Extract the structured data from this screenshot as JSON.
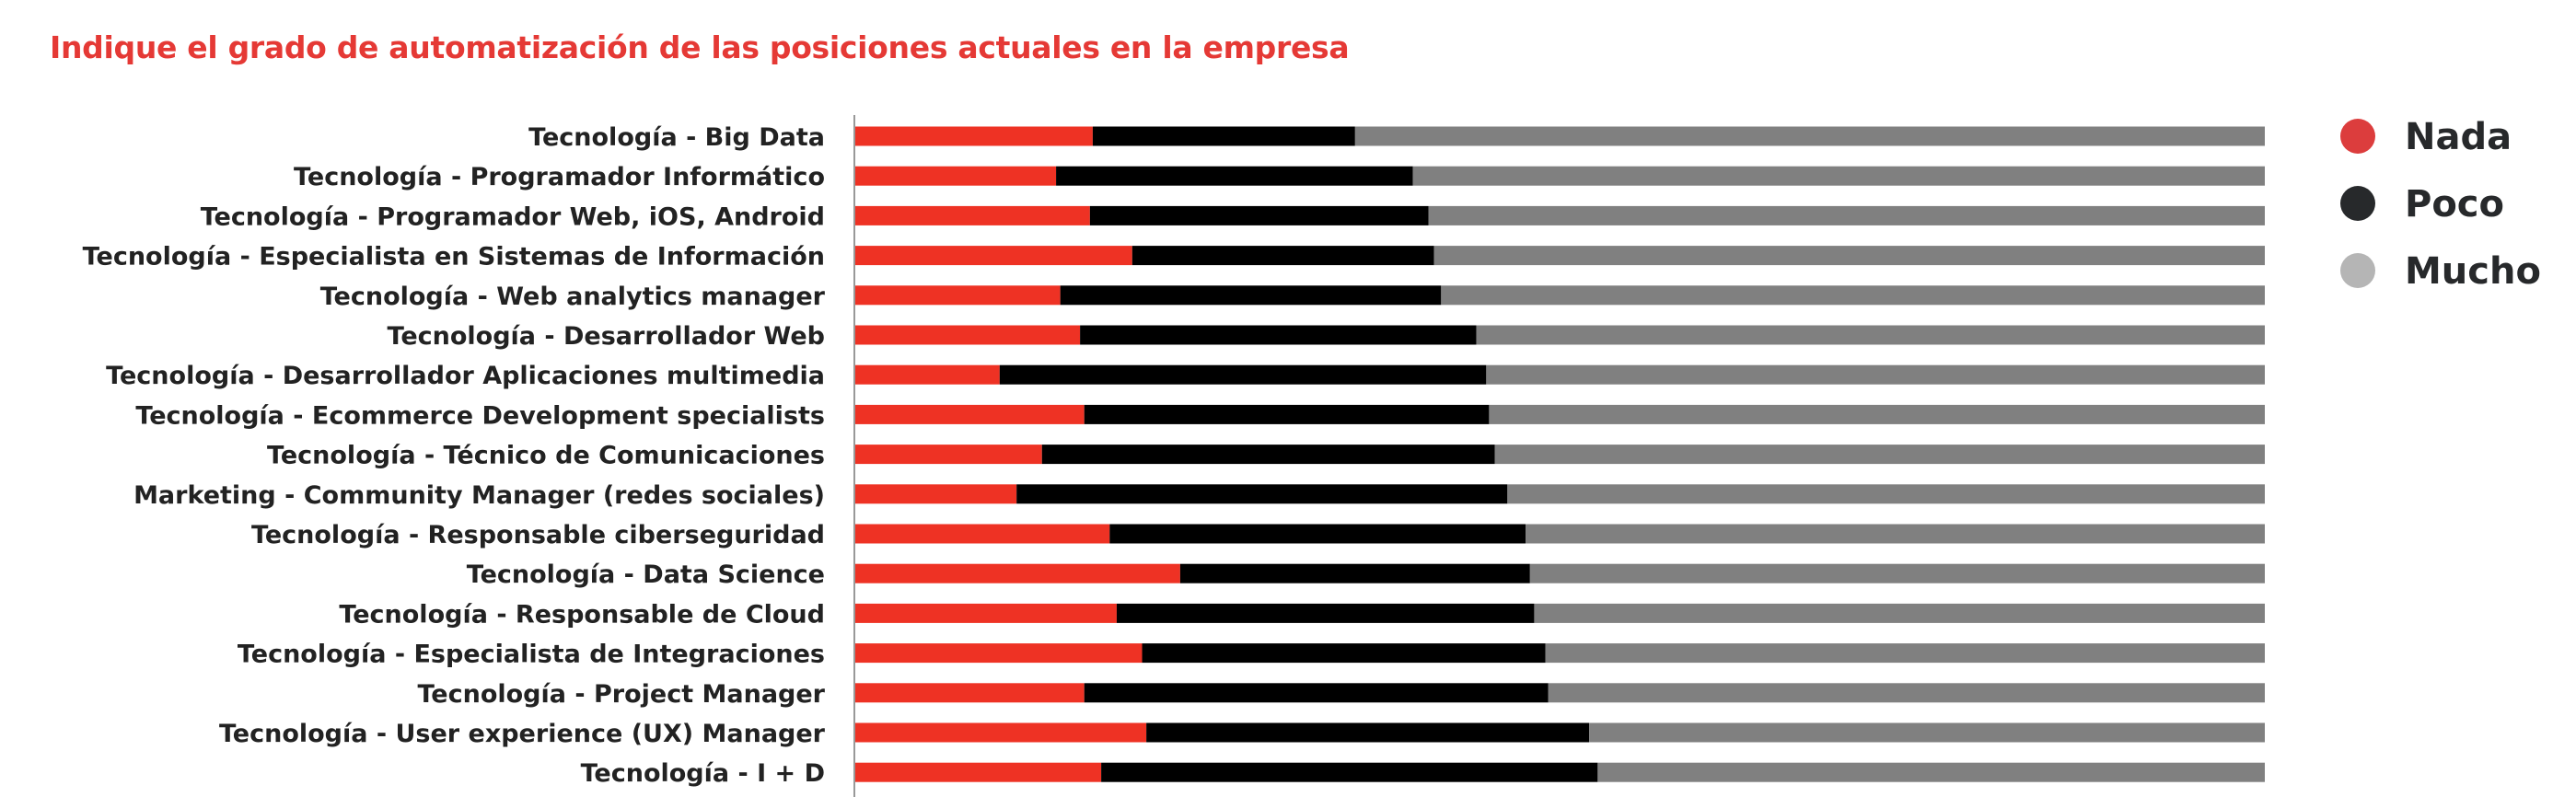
{
  "chart_data": {
    "type": "bar",
    "orientation": "horizontal",
    "stacked": true,
    "percent": true,
    "title": "Indique el grado de automatización de las posiciones actuales en la empresa",
    "xlabel": "",
    "ylabel": "",
    "xlim": [
      0,
      100
    ],
    "grid": false,
    "legend_position": "right",
    "categories": [
      "Tecnología - Big Data",
      "Tecnología - Programador Informático",
      "Tecnología - Programador Web, iOS, Android",
      "Tecnología - Especialista en Sistemas de Información",
      "Tecnología - Web analytics manager",
      "Tecnología - Desarrollador Web",
      "Tecnología - Desarrollador Aplicaciones multimedia",
      "Tecnología - Ecommerce Development specialists",
      "Tecnología - Técnico de Comunicaciones",
      "Marketing - Community Manager (redes sociales)",
      "Tecnología - Responsable ciberseguridad",
      "Tecnología - Data Science",
      "Tecnología - Responsable de Cloud",
      "Tecnología - Especialista de Integraciones",
      "Tecnología - Project Manager",
      "Tecnología - User experience (UX) Manager",
      "Tecnología - I + D"
    ],
    "series": [
      {
        "name": "Nada",
        "color": "#ee3224",
        "legend_color": "#dc3d3d",
        "values": [
          16.9,
          14.3,
          16.7,
          19.7,
          14.6,
          16.0,
          10.3,
          16.3,
          13.3,
          11.5,
          18.1,
          23.1,
          18.6,
          20.4,
          16.3,
          20.7,
          17.5
        ]
      },
      {
        "name": "Poco",
        "color": "#000000",
        "legend_color": "#27292b",
        "values": [
          18.6,
          25.3,
          24.0,
          21.4,
          27.0,
          28.1,
          34.5,
          28.7,
          32.1,
          34.8,
          29.5,
          24.8,
          29.6,
          28.6,
          32.9,
          31.4,
          35.2
        ]
      },
      {
        "name": "Mucho",
        "color": "#808080",
        "legend_color": "#b5b5b5",
        "values": [
          64.5,
          60.4,
          59.3,
          58.9,
          58.4,
          55.9,
          55.2,
          55.0,
          54.6,
          53.7,
          52.4,
          52.1,
          51.8,
          51.0,
          50.8,
          47.9,
          47.3
        ]
      }
    ]
  }
}
